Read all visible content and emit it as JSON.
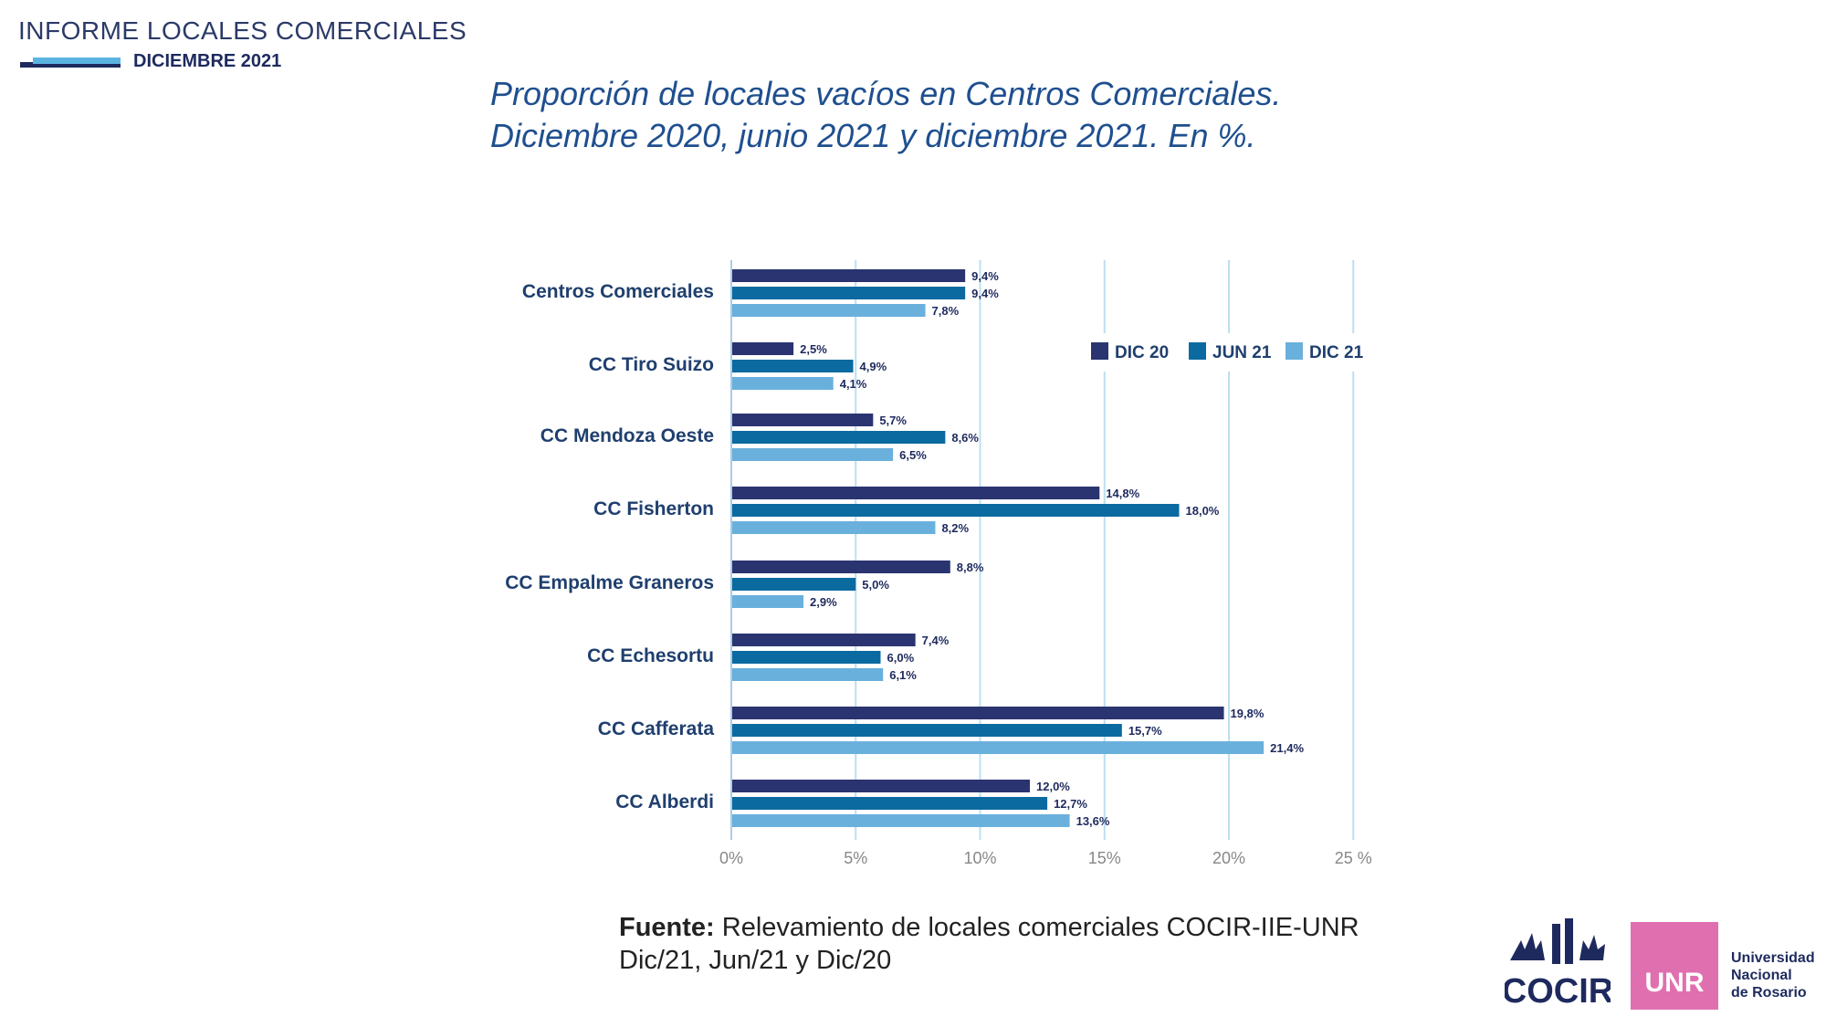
{
  "header": {
    "title": "INFORME LOCALES COMERCIALES",
    "subtitle": "DICIEMBRE 2021"
  },
  "colors": {
    "dic20": "#2a3470",
    "jun21": "#0b6aa0",
    "dic21": "#6ab0dc",
    "grid": "#bcdff0",
    "label": "#1f3f6e"
  },
  "chart_data": {
    "type": "bar",
    "orientation": "horizontal",
    "title_line1": "Proporción de locales vacíos en Centros Comerciales.",
    "title_line2": "Diciembre 2020, junio 2021 y diciembre 2021. En %.",
    "categories": [
      "Centros Comerciales",
      "CC Tiro Suizo",
      "CC Mendoza Oeste",
      "CC Fisherton",
      "CC Empalme Graneros",
      "CC Echesortu",
      "CC Cafferata",
      "CC Alberdi"
    ],
    "series": [
      {
        "name": "DIC 20",
        "values": [
          9.4,
          2.5,
          5.7,
          14.8,
          8.8,
          7.4,
          19.8,
          12.0
        ],
        "labels": [
          "9,4%",
          "2,5%",
          "5,7%",
          "14,8%",
          "8,8%",
          "7,4%",
          "19,8%",
          "12,0%"
        ]
      },
      {
        "name": "JUN 21",
        "values": [
          9.4,
          4.9,
          8.6,
          18.0,
          5.0,
          6.0,
          15.7,
          12.7
        ],
        "labels": [
          "9,4%",
          "4,9%",
          "8,6%",
          "18,0%",
          "5,0%",
          "6,0%",
          "15,7%",
          "12,7%"
        ]
      },
      {
        "name": "DIC 21",
        "values": [
          7.8,
          4.1,
          6.5,
          8.2,
          2.9,
          6.1,
          21.4,
          13.6
        ],
        "labels": [
          "7,8%",
          "4,1%",
          "6,5%",
          "8,2%",
          "2,9%",
          "6,1%",
          "21,4%",
          "13,6%"
        ]
      }
    ],
    "xlim": [
      0,
      25
    ],
    "xticks": [
      0,
      5,
      10,
      15,
      20,
      25
    ],
    "xtick_labels": [
      "0%",
      "5%",
      "10%",
      "15%",
      "20%",
      "25 %"
    ],
    "grid": true,
    "legend_position": "top-right"
  },
  "source": {
    "label": "Fuente:",
    "text": "Relevamiento de locales comerciales COCIR-IIE-UNR",
    "text2": "Dic/21, Jun/21 y Dic/20"
  },
  "logos": {
    "cocir": "COCIR",
    "unr": "UNR",
    "univ_line1": "Universidad",
    "univ_line2": "Nacional",
    "univ_line3": "de Rosario"
  }
}
